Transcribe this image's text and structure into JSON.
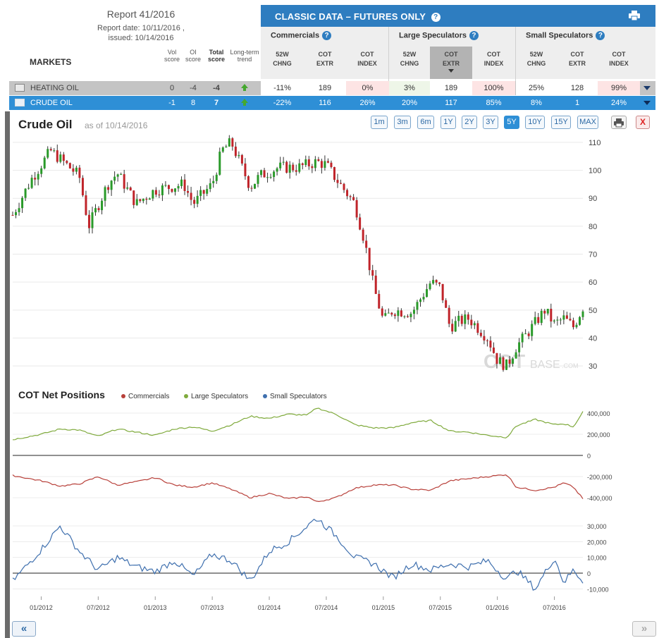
{
  "report": {
    "title": "Report 41/2016",
    "date_line": "Report date: 10/11/2016 ,",
    "issued_line": "issued: 10/14/2016"
  },
  "table": {
    "markets_label": "MARKETS",
    "score_headers": {
      "vol_l1": "Vol",
      "vol_l2": "score",
      "oi_l1": "OI",
      "oi_l2": "score",
      "total_l1": "Total",
      "total_l2": "score",
      "trend_l1": "Long-term",
      "trend_l2": "trend"
    },
    "classic_title": "CLASSIC DATA – FUTURES ONLY",
    "help_glyph": "?",
    "groups": [
      "Commercials",
      "Large Speculators",
      "Small Speculators"
    ],
    "col_headers": [
      {
        "l1": "52W",
        "l2": "CHNG"
      },
      {
        "l1": "COT",
        "l2": "EXTR"
      },
      {
        "l1": "COT",
        "l2": "INDEX"
      },
      {
        "l1": "52W",
        "l2": "CHNG"
      },
      {
        "l1": "COT",
        "l2": "EXTR"
      },
      {
        "l1": "COT",
        "l2": "INDEX"
      },
      {
        "l1": "52W",
        "l2": "CHNG"
      },
      {
        "l1": "COT",
        "l2": "EXTR"
      },
      {
        "l1": "COT",
        "l2": "INDEX"
      }
    ],
    "rows": [
      {
        "name": "HEATING OIL",
        "vol": "0",
        "oi": "-4",
        "total": "-4",
        "vals": [
          "-11%",
          "189",
          "0%",
          "3%",
          "189",
          "100%",
          "25%",
          "128",
          "99%"
        ]
      },
      {
        "name": "CRUDE OIL",
        "vol": "-1",
        "oi": "8",
        "total": "7",
        "vals": [
          "-22%",
          "116",
          "26%",
          "20%",
          "117",
          "85%",
          "8%",
          "1",
          "24%"
        ]
      }
    ]
  },
  "price_chart": {
    "title": "Crude Oil",
    "as_of": "as of 10/14/2016",
    "ranges": [
      "1m",
      "3m",
      "6m",
      "1Y",
      "2Y",
      "3Y",
      "5Y",
      "10Y",
      "15Y",
      "MAX"
    ],
    "active_range": "5Y",
    "close_label": "X",
    "watermark_a": "COT",
    "watermark_b": "BASE",
    "watermark_c": ".COM"
  },
  "cot_chart": {
    "title": "COT Net Positions",
    "legend": [
      {
        "name": "Commercials",
        "color": "#b8403a"
      },
      {
        "name": "Large Speculators",
        "color": "#7faa3c"
      },
      {
        "name": "Small Speculators",
        "color": "#3e6fae"
      }
    ]
  },
  "nav": {
    "prev": "«",
    "next": "»"
  },
  "colors": {
    "accent": "#2e7dc0",
    "up_candle": "#2a9a2a",
    "down_candle": "#c0242a",
    "trend_up": "#45a82f"
  },
  "chart_data": [
    {
      "type": "line",
      "title": "Crude Oil",
      "series_style": "candlestick",
      "x": [
        "2011-10",
        "2011-12",
        "2012-02",
        "2012-05",
        "2012-06",
        "2012-08",
        "2012-09",
        "2012-11",
        "2013-01",
        "2013-04",
        "2013-05",
        "2013-07",
        "2013-08",
        "2013-09",
        "2013-11",
        "2013-12",
        "2014-02",
        "2014-04",
        "2014-06",
        "2014-07",
        "2014-08",
        "2014-10",
        "2014-11",
        "2014-12",
        "2015-01",
        "2015-02",
        "2015-04",
        "2015-06",
        "2015-07",
        "2015-08",
        "2015-09",
        "2015-10",
        "2015-12",
        "2016-01",
        "2016-02",
        "2016-03",
        "2016-04",
        "2016-06",
        "2016-07",
        "2016-08",
        "2016-09",
        "2016-10"
      ],
      "values": [
        84,
        97,
        107,
        98,
        80,
        95,
        99,
        88,
        93,
        95,
        88,
        95,
        107,
        110,
        94,
        98,
        101,
        101,
        103,
        102,
        97,
        88,
        75,
        58,
        46,
        50,
        49,
        60,
        58,
        44,
        46,
        47,
        40,
        32,
        30,
        37,
        41,
        50,
        45,
        47,
        44,
        51
      ],
      "x_ticks": [
        "01/2012",
        "07/2012",
        "01/2013",
        "07/2013",
        "01/2014",
        "07/2014",
        "01/2015",
        "07/2015",
        "01/2016",
        "07/2016"
      ],
      "y_ticks": [
        30,
        40,
        50,
        60,
        70,
        80,
        90,
        100,
        110
      ],
      "ylim": [
        26,
        113
      ]
    },
    {
      "type": "line",
      "title": "COT Net Positions",
      "x": [
        "2011-10",
        "2012-01",
        "2012-03",
        "2012-05",
        "2012-07",
        "2012-09",
        "2012-11",
        "2013-01",
        "2013-03",
        "2013-05",
        "2013-07",
        "2013-09",
        "2013-11",
        "2014-01",
        "2014-03",
        "2014-05",
        "2014-06",
        "2014-08",
        "2014-10",
        "2014-12",
        "2015-02",
        "2015-04",
        "2015-06",
        "2015-08",
        "2015-10",
        "2015-12",
        "2016-02",
        "2016-03",
        "2016-05",
        "2016-07",
        "2016-08",
        "2016-09",
        "2016-10"
      ],
      "series": [
        {
          "name": "Large Speculators",
          "values": [
            150000,
            200000,
            250000,
            240000,
            180000,
            250000,
            220000,
            190000,
            250000,
            270000,
            230000,
            290000,
            370000,
            350000,
            390000,
            380000,
            450000,
            390000,
            290000,
            260000,
            260000,
            310000,
            330000,
            230000,
            220000,
            190000,
            170000,
            280000,
            340000,
            290000,
            300000,
            270000,
            410000
          ]
        },
        {
          "name": "Commercials",
          "values": [
            -190000,
            -240000,
            -290000,
            -270000,
            -200000,
            -280000,
            -250000,
            -210000,
            -280000,
            -300000,
            -260000,
            -320000,
            -400000,
            -360000,
            -410000,
            -390000,
            -440000,
            -400000,
            -310000,
            -280000,
            -280000,
            -320000,
            -330000,
            -240000,
            -220000,
            -200000,
            -180000,
            -300000,
            -330000,
            -300000,
            -260000,
            -300000,
            -410000
          ]
        },
        {
          "name": "Small Speculators",
          "values": [
            -5000,
            15000,
            30000,
            14000,
            2000,
            10000,
            4000,
            1000,
            8000,
            -2000,
            12000,
            8000,
            -5000,
            14000,
            20000,
            30000,
            35000,
            24000,
            10000,
            6000,
            -3000,
            6000,
            2000,
            6000,
            4000,
            8000,
            -4000,
            2000,
            -10000,
            10000,
            -6000,
            2000,
            -5000
          ]
        }
      ],
      "y_ticks_upper": [
        400000,
        200000,
        0,
        -200000,
        -400000
      ],
      "y_ticks_lower": [
        30000,
        20000,
        10000,
        0,
        -10000
      ]
    }
  ]
}
